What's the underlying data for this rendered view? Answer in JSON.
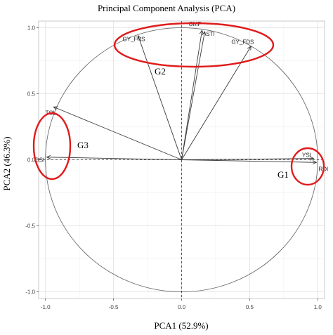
{
  "chart_data": {
    "type": "scatter",
    "title": "Principal Component Analysis (PCA)",
    "xlabel": "PCA1 (52.9%)",
    "ylabel": "PCA2 (46.3%)",
    "xlim": [
      -1.05,
      1.05
    ],
    "ylim": [
      -1.05,
      1.05
    ],
    "x_ticks": [
      -1.0,
      -0.5,
      0.0,
      0.5,
      1.0
    ],
    "x_tick_labels": [
      "-1.0",
      "-0.5",
      "0.0",
      "0.5",
      "1.0"
    ],
    "y_ticks": [
      -1.0,
      -0.5,
      0.0,
      0.5,
      1.0
    ],
    "y_tick_labels": [
      "-1.0",
      "-0.5",
      "0.0",
      "0.5",
      "1.0"
    ],
    "grid": true,
    "unit_circle": true,
    "vectors": [
      {
        "label": "GY_FNS",
        "x": -0.32,
        "y": 0.94
      },
      {
        "label": "GMP",
        "x": 0.15,
        "y": 0.98
      },
      {
        "label": "STI",
        "x": 0.17,
        "y": 0.97
      },
      {
        "label": "GY_FDS",
        "x": 0.51,
        "y": 0.86
      },
      {
        "label": "TOL",
        "x": -0.94,
        "y": 0.4
      },
      {
        "label": "DSI",
        "x": -0.99,
        "y": 0.02
      },
      {
        "label": "YSI",
        "x": 0.97,
        "y": 0.01
      },
      {
        "label": "RDI",
        "x": 0.99,
        "y": -0.02
      }
    ],
    "groups": [
      {
        "label": "G1",
        "color": "#e01b1b"
      },
      {
        "label": "G2",
        "color": "#e01b1b"
      },
      {
        "label": "G3",
        "color": "#e01b1b"
      }
    ]
  }
}
